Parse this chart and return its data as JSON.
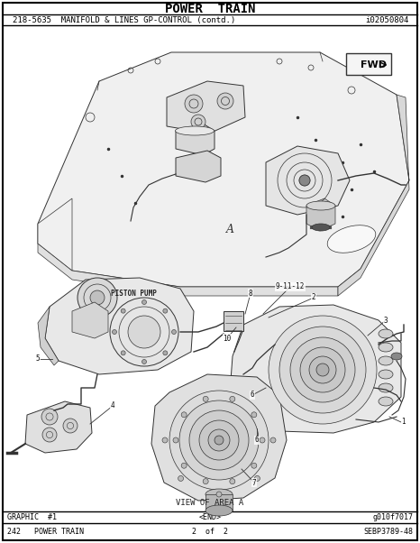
{
  "title": "POWER  TRAIN",
  "subtitle": "218-5635  MANIFOLD & LINES GP-CONTROL (contd.)",
  "subtitle_right": "i02050804",
  "bg_color": "#ffffff",
  "footer_left": "GRAPHIC  #1",
  "footer_center": "<END>",
  "footer_right": "g010f7017",
  "bottom_left": "242   POWER TRAIN",
  "bottom_center": "2  of  2",
  "bottom_right": "SEBP3789-48",
  "caption": "VIEW OF AREA A",
  "fwd_label": "FWD",
  "label_A": "A",
  "label_PISTON_PUMP": "PISTON PUMP",
  "title_fontsize": 10,
  "subtitle_fontsize": 6.5,
  "footer_fontsize": 6.0,
  "body_fontsize": 6.5,
  "line_color": "#333333",
  "fill_light": "#f2f2f2",
  "fill_mid": "#e0e0e0",
  "fill_dark": "#c8c8c8"
}
